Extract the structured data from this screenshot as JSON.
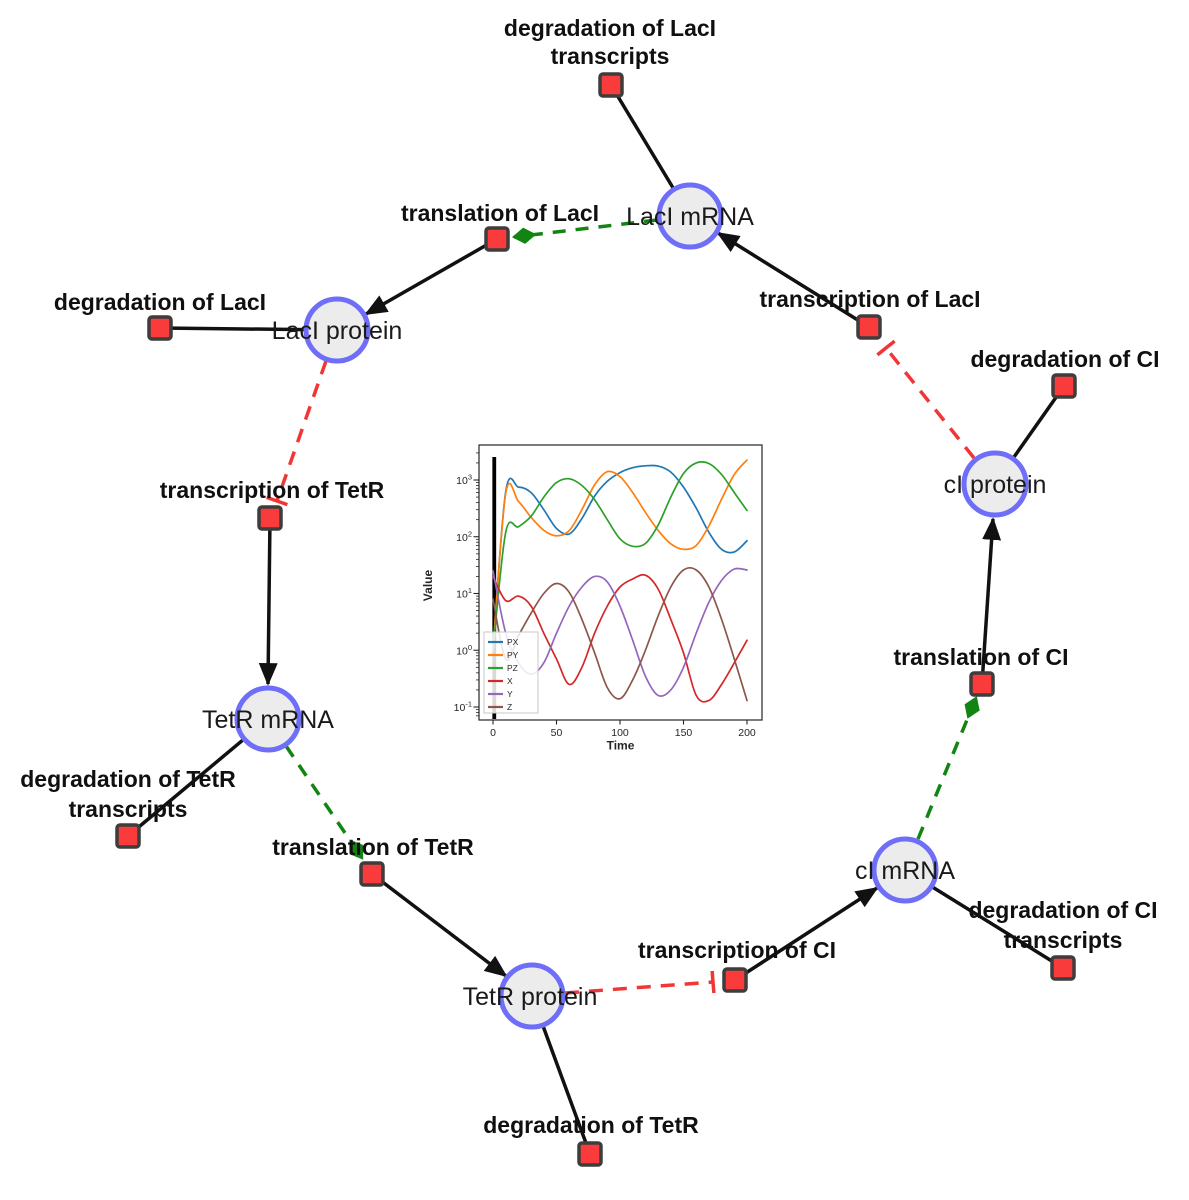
{
  "diagram": {
    "species": [
      {
        "label": "LacI mRNA"
      },
      {
        "label": "LacI protein"
      },
      {
        "label": "cI protein"
      },
      {
        "label": "TetR mRNA"
      },
      {
        "label": "TetR protein"
      },
      {
        "label": "cI mRNA"
      }
    ],
    "reactions": [
      {
        "label": "degradation of LacI",
        "label2": "transcripts"
      },
      {
        "label": "translation of LacI"
      },
      {
        "label": "degradation of LacI"
      },
      {
        "label": "transcription of LacI"
      },
      {
        "label": "degradation of CI"
      },
      {
        "label": "transcription of TetR"
      },
      {
        "label": "translation of CI"
      },
      {
        "label": "degradation of TetR",
        "label2": "transcripts"
      },
      {
        "label": "translation of TetR"
      },
      {
        "label": "degradation of CI",
        "label2": "transcripts"
      },
      {
        "label": "transcription of CI"
      },
      {
        "label": "degradation of TetR"
      }
    ],
    "colors": {
      "node_fill": "#ececec",
      "node_border": "#6e6ef8",
      "reaction_fill": "#fa3b3b",
      "reaction_border": "#3d3d3d",
      "edge": "#111111",
      "modifier_edge": "#128412",
      "inhibition_edge": "#f23636"
    }
  },
  "chart_data": {
    "type": "line",
    "xlabel": "Time",
    "ylabel": "Value",
    "yscale": "log",
    "xlim": [
      0,
      200
    ],
    "xticks": [
      0,
      50,
      100,
      150,
      200
    ],
    "ytick_exponents": [
      -1,
      0,
      1,
      2,
      3
    ],
    "legend_position": "lower left",
    "grid": false,
    "initial_spike_time": 1,
    "x": [
      0,
      10,
      20,
      30,
      40,
      50,
      60,
      70,
      80,
      90,
      100,
      110,
      120,
      130,
      140,
      150,
      160,
      170,
      180,
      190,
      200
    ],
    "series": [
      {
        "name": "PX",
        "color": "#1f77b4",
        "values": [
          1,
          620,
          750,
          600,
          300,
          140,
          112,
          210,
          520,
          950,
          1350,
          1650,
          1780,
          1760,
          1380,
          750,
          320,
          120,
          60,
          54,
          85
        ]
      },
      {
        "name": "PY",
        "color": "#ff7f0e",
        "values": [
          1,
          580,
          420,
          220,
          130,
          104,
          128,
          300,
          820,
          1400,
          1150,
          600,
          270,
          130,
          75,
          60,
          70,
          155,
          460,
          1250,
          2250
        ]
      },
      {
        "name": "PZ",
        "color": "#2ca02c",
        "values": [
          1,
          120,
          150,
          230,
          500,
          900,
          1050,
          800,
          450,
          200,
          92,
          68,
          76,
          160,
          500,
          1300,
          2000,
          1950,
          1250,
          600,
          290
        ]
      },
      {
        "name": "X",
        "color": "#d62728",
        "values": [
          20,
          7.5,
          9,
          6,
          2,
          0.7,
          0.25,
          0.5,
          2,
          6,
          13,
          18,
          21,
          12,
          3.5,
          0.9,
          0.16,
          0.13,
          0.25,
          0.6,
          1.5
        ]
      },
      {
        "name": "Y",
        "color": "#9467bd",
        "values": [
          25,
          2,
          0.6,
          0.38,
          0.6,
          2,
          6,
          13,
          20,
          16,
          6,
          1.5,
          0.35,
          0.16,
          0.2,
          0.5,
          2,
          7,
          17,
          27,
          26
        ]
      },
      {
        "name": "Z",
        "color": "#8c564b",
        "values": [
          8,
          0.7,
          1.8,
          4.5,
          10,
          15,
          10.5,
          3.5,
          0.9,
          0.22,
          0.14,
          0.3,
          1,
          4,
          13,
          26,
          26,
          13,
          3.5,
          0.7,
          0.13
        ]
      }
    ]
  }
}
